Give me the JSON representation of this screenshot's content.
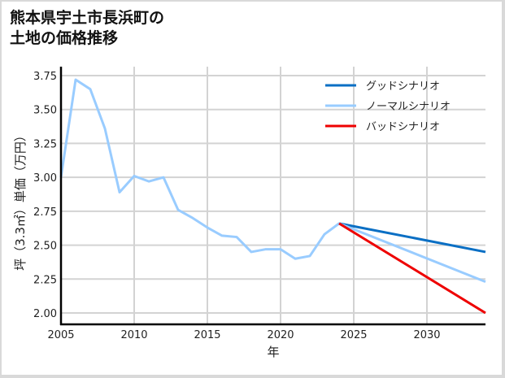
{
  "title_line1": "熊本県宇土市長浜町の",
  "title_line2": "土地の価格推移",
  "chart_data": {
    "type": "line",
    "title": "熊本県宇土市長浜町の土地の価格推移",
    "xlabel": "年",
    "ylabel": "坪（3.3㎡）単価（万円）",
    "xlim": [
      2005,
      2034
    ],
    "ylim": [
      1.92,
      3.8
    ],
    "grid": true,
    "legend_position": "upper right",
    "x_ticks": [
      2005,
      2010,
      2015,
      2020,
      2025,
      2030
    ],
    "y_ticks": [
      2.0,
      2.25,
      2.5,
      2.75,
      3.0,
      3.25,
      3.5,
      3.75
    ],
    "x_tick_labels": [
      "2005",
      "2010",
      "2015",
      "2020",
      "2025",
      "2030"
    ],
    "y_tick_labels": [
      "2.00",
      "2.25",
      "2.50",
      "2.75",
      "3.00",
      "3.25",
      "3.50",
      "3.75"
    ],
    "series": [
      {
        "name": "グッドシナリオ",
        "color": "#0a6fc4",
        "x": [
          2024,
          2034
        ],
        "values": [
          2.66,
          2.45
        ]
      },
      {
        "name": "ノーマルシナリオ",
        "color": "#99ccff",
        "x": [
          2005,
          2006,
          2007,
          2008,
          2009,
          2010,
          2011,
          2012,
          2013,
          2014,
          2015,
          2016,
          2017,
          2018,
          2019,
          2020,
          2021,
          2022,
          2023,
          2024,
          2034
        ],
        "values": [
          3.0,
          3.72,
          3.65,
          3.36,
          2.89,
          3.01,
          2.97,
          3.0,
          2.76,
          2.7,
          2.63,
          2.57,
          2.56,
          2.45,
          2.47,
          2.47,
          2.4,
          2.42,
          2.58,
          2.66,
          2.23
        ]
      },
      {
        "name": "バッドシナリオ",
        "color": "#ee0000",
        "x": [
          2024,
          2034
        ],
        "values": [
          2.66,
          2.0
        ]
      }
    ]
  }
}
